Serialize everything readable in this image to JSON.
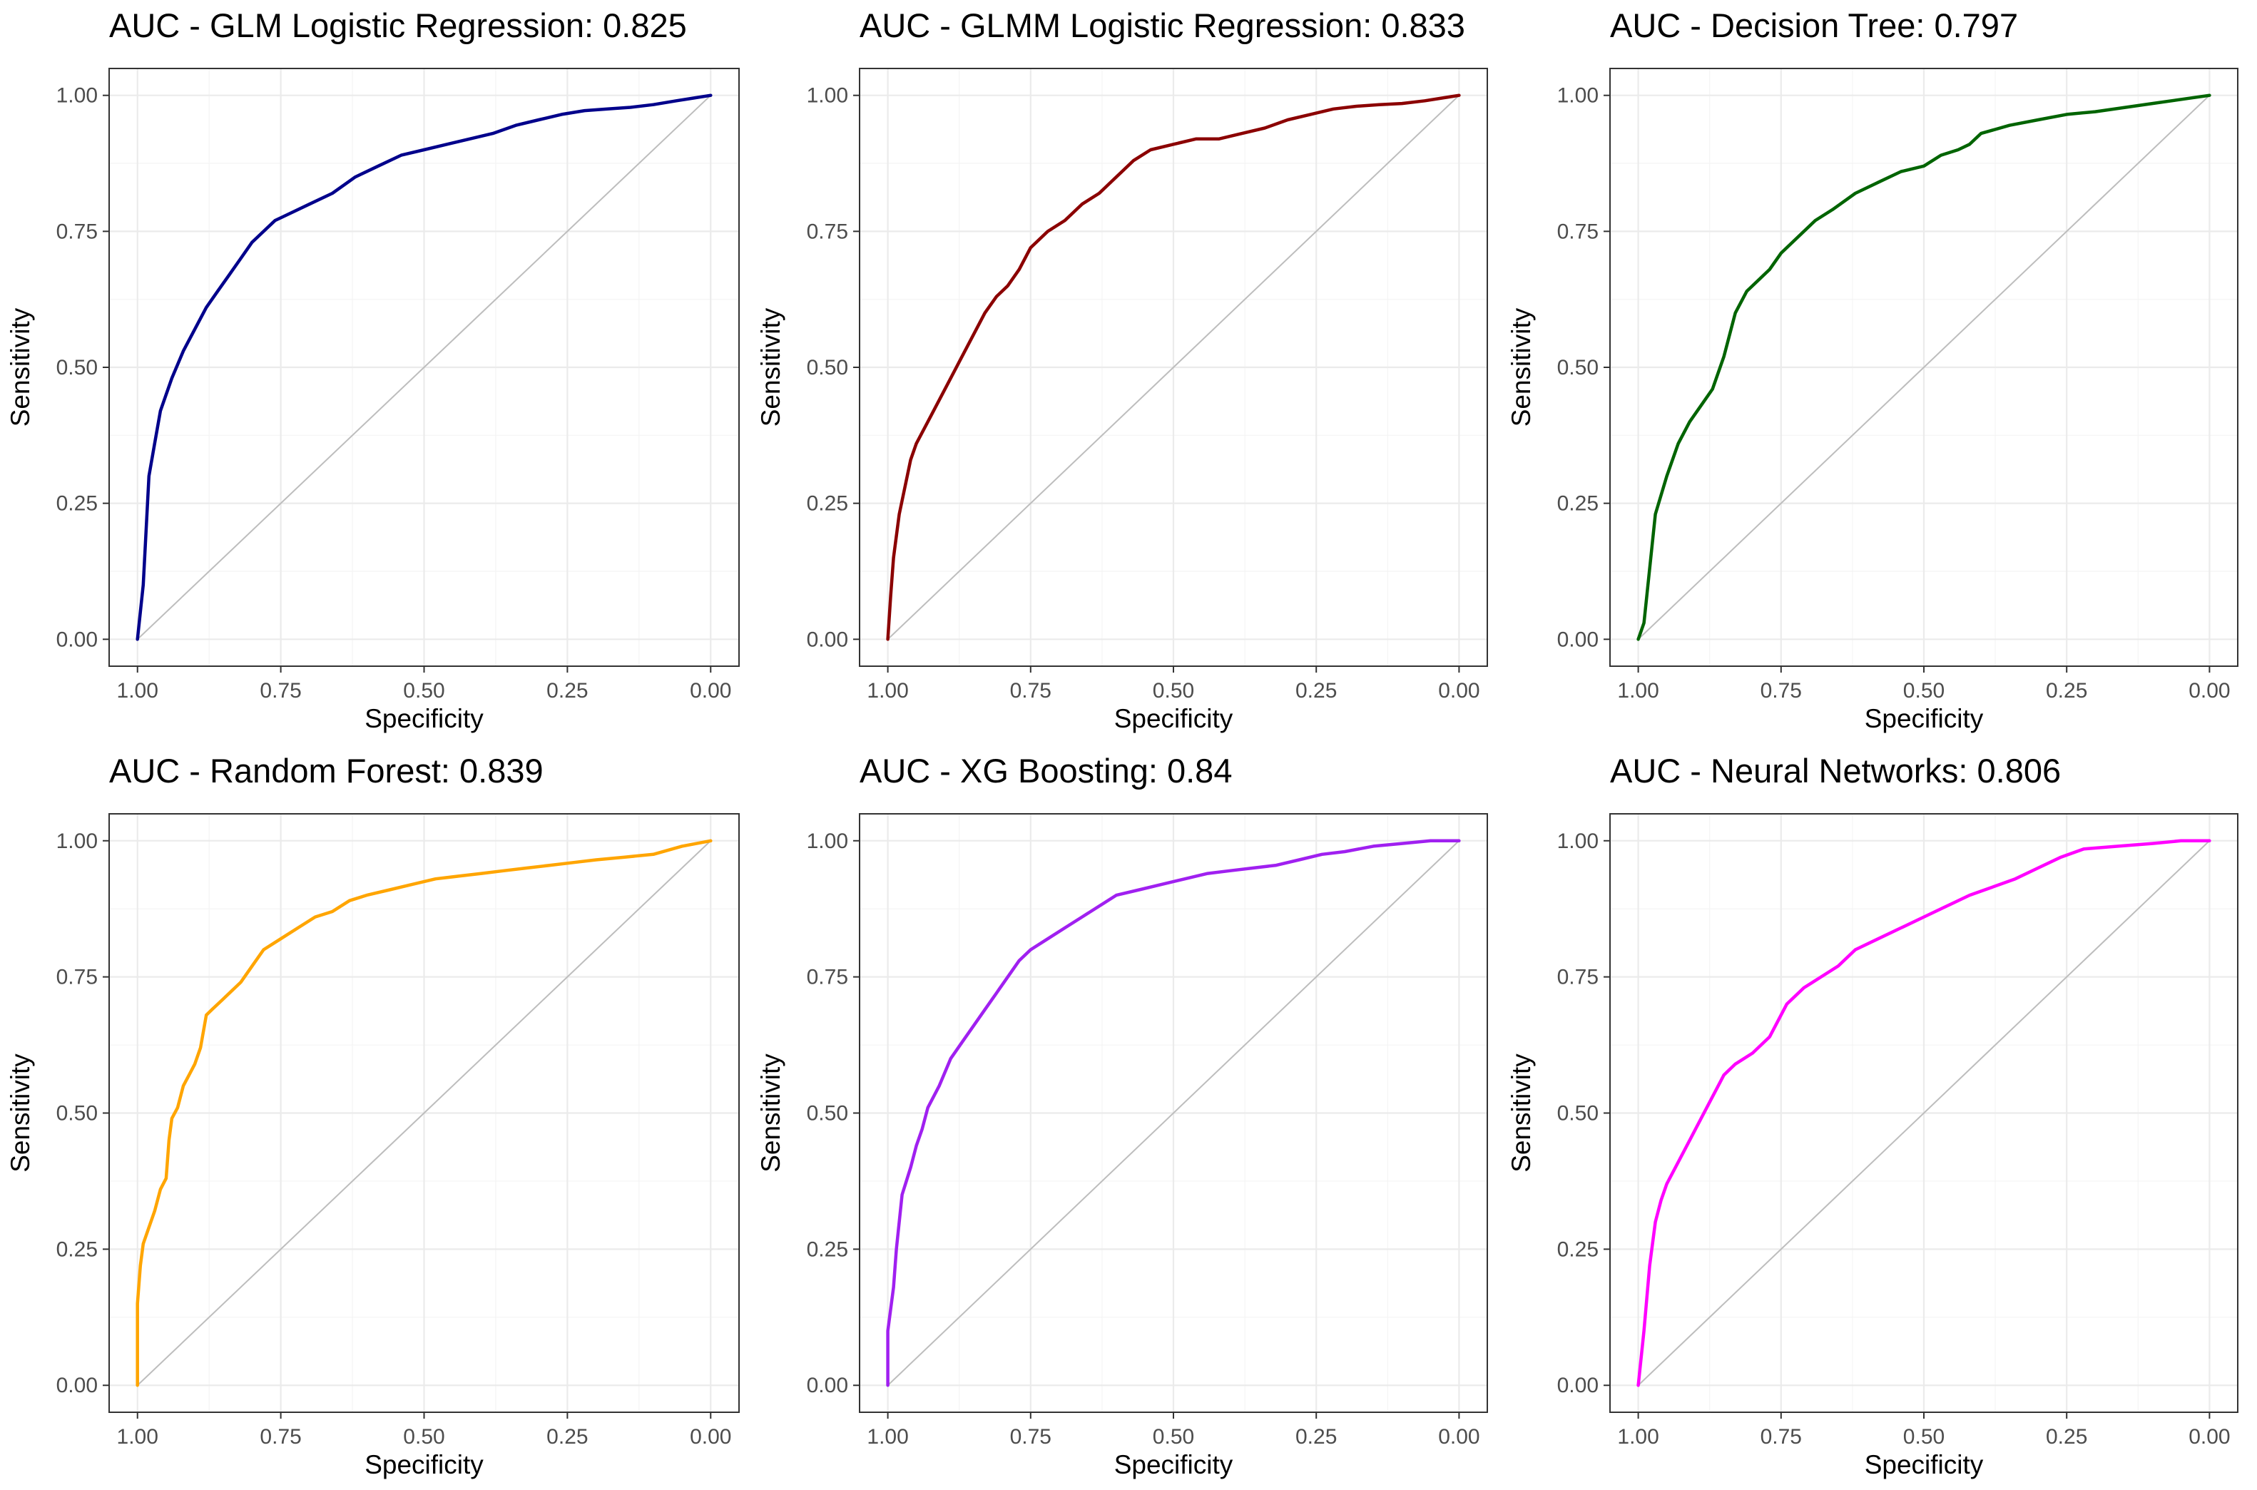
{
  "chart_data": [
    {
      "type": "line",
      "title": "AUC - GLM Logistic Regression: 0.825",
      "xlabel": "Specificity",
      "ylabel": "Sensitivity",
      "xlim": [
        1,
        0
      ],
      "ylim": [
        0,
        1
      ],
      "xticks": [
        "1.00",
        "0.75",
        "0.50",
        "0.25",
        "0.00"
      ],
      "yticks": [
        "0.00",
        "0.25",
        "0.50",
        "0.75",
        "1.00"
      ],
      "grid": true,
      "color": "#00008B",
      "series": [
        {
          "name": "ROC",
          "x": [
            1.0,
            0.99,
            0.985,
            0.98,
            0.97,
            0.96,
            0.94,
            0.92,
            0.9,
            0.88,
            0.86,
            0.84,
            0.82,
            0.8,
            0.78,
            0.76,
            0.74,
            0.7,
            0.66,
            0.62,
            0.58,
            0.54,
            0.5,
            0.46,
            0.42,
            0.38,
            0.34,
            0.3,
            0.26,
            0.22,
            0.18,
            0.14,
            0.1,
            0.06,
            0.03,
            0.0
          ],
          "y": [
            0.0,
            0.1,
            0.2,
            0.3,
            0.36,
            0.42,
            0.48,
            0.53,
            0.57,
            0.61,
            0.64,
            0.67,
            0.7,
            0.73,
            0.75,
            0.77,
            0.78,
            0.8,
            0.82,
            0.85,
            0.87,
            0.89,
            0.9,
            0.91,
            0.92,
            0.93,
            0.945,
            0.955,
            0.965,
            0.972,
            0.975,
            0.978,
            0.983,
            0.99,
            0.995,
            1.0
          ]
        }
      ]
    },
    {
      "type": "line",
      "title": "AUC - GLMM Logistic Regression: 0.833",
      "xlabel": "Specificity",
      "ylabel": "Sensitivity",
      "xlim": [
        1,
        0
      ],
      "ylim": [
        0,
        1
      ],
      "xticks": [
        "1.00",
        "0.75",
        "0.50",
        "0.25",
        "0.00"
      ],
      "yticks": [
        "0.00",
        "0.25",
        "0.50",
        "0.75",
        "1.00"
      ],
      "grid": true,
      "color": "#8B0000",
      "series": [
        {
          "name": "ROC",
          "x": [
            1.0,
            0.995,
            0.99,
            0.985,
            0.98,
            0.97,
            0.96,
            0.95,
            0.93,
            0.91,
            0.89,
            0.87,
            0.85,
            0.83,
            0.81,
            0.79,
            0.77,
            0.75,
            0.72,
            0.69,
            0.66,
            0.63,
            0.6,
            0.57,
            0.54,
            0.5,
            0.46,
            0.42,
            0.38,
            0.34,
            0.3,
            0.26,
            0.22,
            0.18,
            0.14,
            0.1,
            0.06,
            0.03,
            0.0
          ],
          "y": [
            0.0,
            0.08,
            0.15,
            0.19,
            0.23,
            0.28,
            0.33,
            0.36,
            0.4,
            0.44,
            0.48,
            0.52,
            0.56,
            0.6,
            0.63,
            0.65,
            0.68,
            0.72,
            0.75,
            0.77,
            0.8,
            0.82,
            0.85,
            0.88,
            0.9,
            0.91,
            0.92,
            0.92,
            0.93,
            0.94,
            0.955,
            0.965,
            0.975,
            0.98,
            0.983,
            0.985,
            0.99,
            0.995,
            1.0
          ]
        }
      ]
    },
    {
      "type": "line",
      "title": "AUC - Decision Tree: 0.797",
      "xlabel": "Specificity",
      "ylabel": "Sensitivity",
      "xlim": [
        1,
        0
      ],
      "ylim": [
        0,
        1
      ],
      "xticks": [
        "1.00",
        "0.75",
        "0.50",
        "0.25",
        "0.00"
      ],
      "yticks": [
        "0.00",
        "0.25",
        "0.50",
        "0.75",
        "1.00"
      ],
      "grid": true,
      "color": "#006400",
      "series": [
        {
          "name": "ROC",
          "x": [
            1.0,
            0.99,
            0.97,
            0.95,
            0.93,
            0.91,
            0.89,
            0.87,
            0.85,
            0.83,
            0.81,
            0.79,
            0.77,
            0.75,
            0.72,
            0.69,
            0.66,
            0.62,
            0.58,
            0.54,
            0.5,
            0.47,
            0.44,
            0.42,
            0.4,
            0.35,
            0.3,
            0.25,
            0.2,
            0.1,
            0.0
          ],
          "y": [
            0.0,
            0.03,
            0.23,
            0.3,
            0.36,
            0.4,
            0.43,
            0.46,
            0.52,
            0.6,
            0.64,
            0.66,
            0.68,
            0.71,
            0.74,
            0.77,
            0.79,
            0.82,
            0.84,
            0.86,
            0.87,
            0.89,
            0.9,
            0.91,
            0.93,
            0.945,
            0.955,
            0.965,
            0.97,
            0.985,
            1.0
          ]
        }
      ]
    },
    {
      "type": "line",
      "title": "AUC - Random Forest: 0.839",
      "xlabel": "Specificity",
      "ylabel": "Sensitivity",
      "xlim": [
        1,
        0
      ],
      "ylim": [
        0,
        1
      ],
      "xticks": [
        "1.00",
        "0.75",
        "0.50",
        "0.25",
        "0.00"
      ],
      "yticks": [
        "0.00",
        "0.25",
        "0.50",
        "0.75",
        "1.00"
      ],
      "grid": true,
      "color": "#FFA500",
      "series": [
        {
          "name": "ROC",
          "x": [
            1.0,
            1.0,
            0.995,
            0.99,
            0.98,
            0.97,
            0.96,
            0.95,
            0.945,
            0.94,
            0.93,
            0.92,
            0.91,
            0.9,
            0.89,
            0.88,
            0.87,
            0.85,
            0.82,
            0.8,
            0.78,
            0.75,
            0.72,
            0.69,
            0.66,
            0.63,
            0.6,
            0.56,
            0.52,
            0.48,
            0.44,
            0.4,
            0.36,
            0.32,
            0.28,
            0.24,
            0.2,
            0.15,
            0.1,
            0.05,
            0.0
          ],
          "y": [
            0.0,
            0.15,
            0.22,
            0.26,
            0.29,
            0.32,
            0.36,
            0.38,
            0.45,
            0.49,
            0.51,
            0.55,
            0.57,
            0.59,
            0.62,
            0.68,
            0.69,
            0.71,
            0.74,
            0.77,
            0.8,
            0.82,
            0.84,
            0.86,
            0.87,
            0.89,
            0.9,
            0.91,
            0.92,
            0.93,
            0.935,
            0.94,
            0.945,
            0.95,
            0.955,
            0.96,
            0.965,
            0.97,
            0.975,
            0.99,
            1.0
          ]
        }
      ]
    },
    {
      "type": "line",
      "title": "AUC - XG Boosting: 0.84",
      "xlabel": "Specificity",
      "ylabel": "Sensitivity",
      "xlim": [
        1,
        0
      ],
      "ylim": [
        0,
        1
      ],
      "xticks": [
        "1.00",
        "0.75",
        "0.50",
        "0.25",
        "0.00"
      ],
      "yticks": [
        "0.00",
        "0.25",
        "0.50",
        "0.75",
        "1.00"
      ],
      "grid": true,
      "color": "#A020F0",
      "series": [
        {
          "name": "ROC",
          "x": [
            1.0,
            1.0,
            0.99,
            0.985,
            0.975,
            0.96,
            0.95,
            0.94,
            0.93,
            0.91,
            0.89,
            0.87,
            0.85,
            0.83,
            0.81,
            0.79,
            0.77,
            0.75,
            0.72,
            0.69,
            0.66,
            0.63,
            0.6,
            0.56,
            0.52,
            0.48,
            0.44,
            0.4,
            0.36,
            0.32,
            0.28,
            0.24,
            0.2,
            0.15,
            0.1,
            0.05,
            0.0
          ],
          "y": [
            0.0,
            0.1,
            0.18,
            0.25,
            0.35,
            0.4,
            0.44,
            0.47,
            0.51,
            0.55,
            0.6,
            0.63,
            0.66,
            0.69,
            0.72,
            0.75,
            0.78,
            0.8,
            0.82,
            0.84,
            0.86,
            0.88,
            0.9,
            0.91,
            0.92,
            0.93,
            0.94,
            0.945,
            0.95,
            0.955,
            0.965,
            0.975,
            0.98,
            0.99,
            0.995,
            1.0,
            1.0
          ]
        }
      ]
    },
    {
      "type": "line",
      "title": "AUC - Neural Networks: 0.806",
      "xlabel": "Specificity",
      "ylabel": "Sensitivity",
      "xlim": [
        1,
        0
      ],
      "ylim": [
        0,
        1
      ],
      "xticks": [
        "1.00",
        "0.75",
        "0.50",
        "0.25",
        "0.00"
      ],
      "yticks": [
        "0.00",
        "0.25",
        "0.50",
        "0.75",
        "1.00"
      ],
      "grid": true,
      "color": "#FF00FF",
      "series": [
        {
          "name": "ROC",
          "x": [
            1.0,
            0.995,
            0.99,
            0.985,
            0.98,
            0.97,
            0.96,
            0.95,
            0.93,
            0.91,
            0.89,
            0.87,
            0.85,
            0.83,
            0.8,
            0.77,
            0.74,
            0.71,
            0.68,
            0.65,
            0.62,
            0.58,
            0.54,
            0.5,
            0.46,
            0.42,
            0.38,
            0.34,
            0.3,
            0.26,
            0.22,
            0.16,
            0.1,
            0.05,
            0.0
          ],
          "y": [
            0.0,
            0.05,
            0.1,
            0.16,
            0.22,
            0.3,
            0.34,
            0.37,
            0.41,
            0.45,
            0.49,
            0.53,
            0.57,
            0.59,
            0.61,
            0.64,
            0.7,
            0.73,
            0.75,
            0.77,
            0.8,
            0.82,
            0.84,
            0.86,
            0.88,
            0.9,
            0.915,
            0.93,
            0.95,
            0.97,
            0.985,
            0.99,
            0.995,
            1.0,
            1.0
          ]
        }
      ]
    }
  ]
}
